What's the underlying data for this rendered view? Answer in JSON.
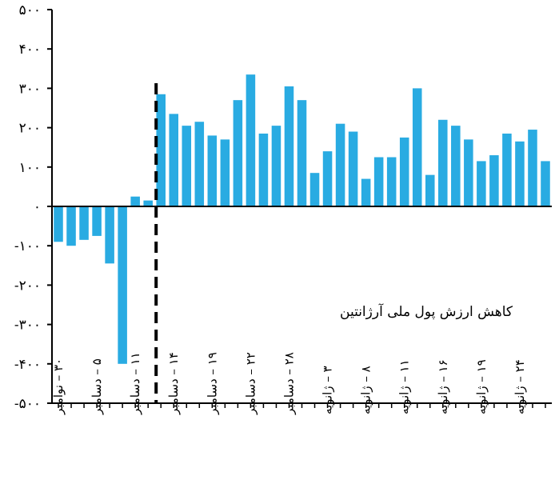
{
  "chart_data": {
    "type": "bar",
    "title": "",
    "xlabel": "",
    "ylabel": "",
    "ylim": [
      -500,
      500
    ],
    "yticks": [
      500,
      400,
      300,
      200,
      100,
      0,
      -100,
      -200,
      -300,
      -400,
      -500
    ],
    "ytick_labels": [
      "۵۰۰",
      "۴۰۰",
      "۳۰۰",
      "۲۰۰",
      "۱۰۰",
      "۰",
      "-۱۰۰",
      "-۲۰۰",
      "-۳۰۰",
      "-۴۰۰",
      "-۵۰۰"
    ],
    "bar_color": "#29abe2",
    "values": [
      -90,
      -100,
      -85,
      -75,
      -145,
      -400,
      25,
      15,
      285,
      235,
      205,
      215,
      180,
      170,
      270,
      335,
      185,
      205,
      305,
      270,
      85,
      140,
      210,
      190,
      70,
      125,
      125,
      175,
      300,
      80,
      220,
      205,
      170,
      115,
      130,
      185,
      165,
      195,
      115
    ],
    "x_labels": [
      {
        "index": 0,
        "text": "۳۰ – نوامبر"
      },
      {
        "index": 3,
        "text": "۵ – دسامبر"
      },
      {
        "index": 6,
        "text": "۱۱ – دسامبر"
      },
      {
        "index": 9,
        "text": "۱۴ – دسامبر"
      },
      {
        "index": 12,
        "text": "۱۹ – دسامبر"
      },
      {
        "index": 15,
        "text": "۲۲ – دسامبر"
      },
      {
        "index": 18,
        "text": "۲۸ – دسامبر"
      },
      {
        "index": 21,
        "text": "۳ – ژانویه"
      },
      {
        "index": 24,
        "text": "۸ – ژانویه"
      },
      {
        "index": 27,
        "text": "۱۱ – ژانویه"
      },
      {
        "index": 30,
        "text": "۱۶ – ژانویه"
      },
      {
        "index": 33,
        "text": "۱۹ – ژانویه"
      },
      {
        "index": 36,
        "text": "۲۴ – ژانویه"
      }
    ],
    "event_after_index": 7,
    "annotation": "کاهش ارزش پول ملی آرژانتین",
    "grid": false,
    "legend": "none"
  }
}
